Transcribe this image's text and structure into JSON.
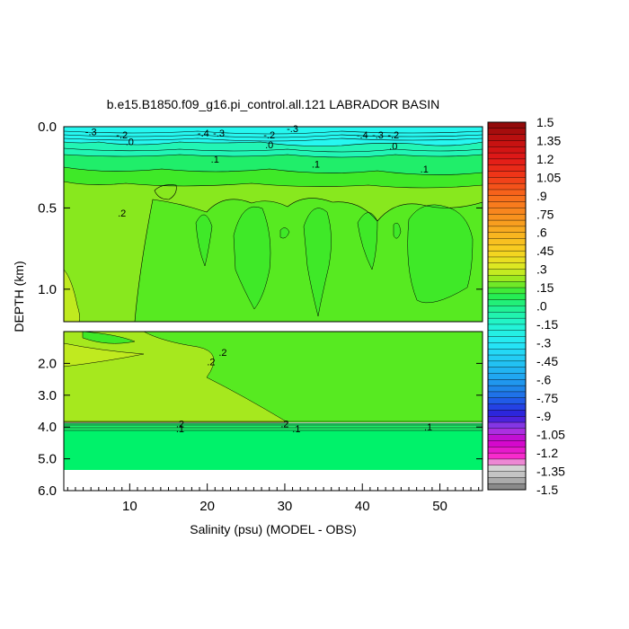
{
  "chart_data": {
    "type": "heatmap",
    "title": "b.e15.B1850.f09_g16.pi_control.all.121 LABRADOR BASIN",
    "xlabel": "Salinity (psu) (MODEL - OBS)",
    "ylabel": "DEPTH (km)",
    "xlim": [
      1.5,
      55.5
    ],
    "x_ticks": [
      {
        "value": 10,
        "label": "10"
      },
      {
        "value": 20,
        "label": "20"
      },
      {
        "value": 30,
        "label": "30"
      },
      {
        "value": 40,
        "label": "40"
      },
      {
        "value": 50,
        "label": "50"
      }
    ],
    "panels": [
      {
        "name": "upper",
        "ylim": [
          0.0,
          1.2
        ],
        "y_ticks": [
          {
            "value": 0.0,
            "label": "0.0"
          },
          {
            "value": 0.5,
            "label": "0.5"
          },
          {
            "value": 1.0,
            "label": "1.0"
          }
        ]
      },
      {
        "name": "lower",
        "ylim": [
          1.0,
          6.0
        ],
        "y_ticks": [
          {
            "value": 2.0,
            "label": "2.0"
          },
          {
            "value": 3.0,
            "label": "3.0"
          },
          {
            "value": 4.0,
            "label": "4.0"
          },
          {
            "value": 5.0,
            "label": "5.0"
          },
          {
            "value": 6.0,
            "label": "6.0"
          }
        ]
      }
    ],
    "colorbar": {
      "min": -1.5,
      "max": 1.5,
      "labels": [
        "1.5",
        "1.35",
        "1.2",
        "1.05",
        ".9",
        ".75",
        ".6",
        ".45",
        ".3",
        ".15",
        ".0",
        "-.15",
        "-.3",
        "-.45",
        "-.6",
        "-.75",
        "-.9",
        "-1.05",
        "-1.2",
        "-1.35",
        "-1.5"
      ]
    },
    "contour_labels": [
      {
        "panel": "upper",
        "x": 5,
        "y": 0.03,
        "text": "-.3"
      },
      {
        "panel": "upper",
        "x": 19.5,
        "y": 0.04,
        "text": "-.4"
      },
      {
        "panel": "upper",
        "x": 21.5,
        "y": 0.04,
        "text": "-.3"
      },
      {
        "panel": "upper",
        "x": 31,
        "y": 0.01,
        "text": "-.3"
      },
      {
        "panel": "upper",
        "x": 40,
        "y": 0.05,
        "text": "-.4"
      },
      {
        "panel": "upper",
        "x": 42,
        "y": 0.05,
        "text": "-.3"
      },
      {
        "panel": "upper",
        "x": 9,
        "y": 0.05,
        "text": "-.2"
      },
      {
        "panel": "upper",
        "x": 28,
        "y": 0.05,
        "text": "-.2"
      },
      {
        "panel": "upper",
        "x": 44,
        "y": 0.05,
        "text": "-.2"
      },
      {
        "panel": "upper",
        "x": 10,
        "y": 0.09,
        "text": ".0"
      },
      {
        "panel": "upper",
        "x": 28,
        "y": 0.11,
        "text": ".0"
      },
      {
        "panel": "upper",
        "x": 44,
        "y": 0.12,
        "text": ".0"
      },
      {
        "panel": "upper",
        "x": 21,
        "y": 0.2,
        "text": ".1"
      },
      {
        "panel": "upper",
        "x": 34,
        "y": 0.23,
        "text": ".1"
      },
      {
        "panel": "upper",
        "x": 48,
        "y": 0.26,
        "text": ".1"
      },
      {
        "panel": "upper",
        "x": 9,
        "y": 0.53,
        "text": ".2"
      },
      {
        "panel": "lower",
        "x": 22,
        "y": 1.65,
        "text": ".2"
      },
      {
        "panel": "lower",
        "x": 20.5,
        "y": 1.95,
        "text": ".2"
      },
      {
        "panel": "lower",
        "x": 16.5,
        "y": 3.9,
        "text": ".2"
      },
      {
        "panel": "lower",
        "x": 16.5,
        "y": 4.05,
        "text": ".1"
      },
      {
        "panel": "lower",
        "x": 30,
        "y": 3.9,
        "text": ".2"
      },
      {
        "panel": "lower",
        "x": 31.5,
        "y": 4.05,
        "text": ".1"
      },
      {
        "panel": "lower",
        "x": 48.5,
        "y": 4.0,
        "text": ".1"
      }
    ]
  }
}
